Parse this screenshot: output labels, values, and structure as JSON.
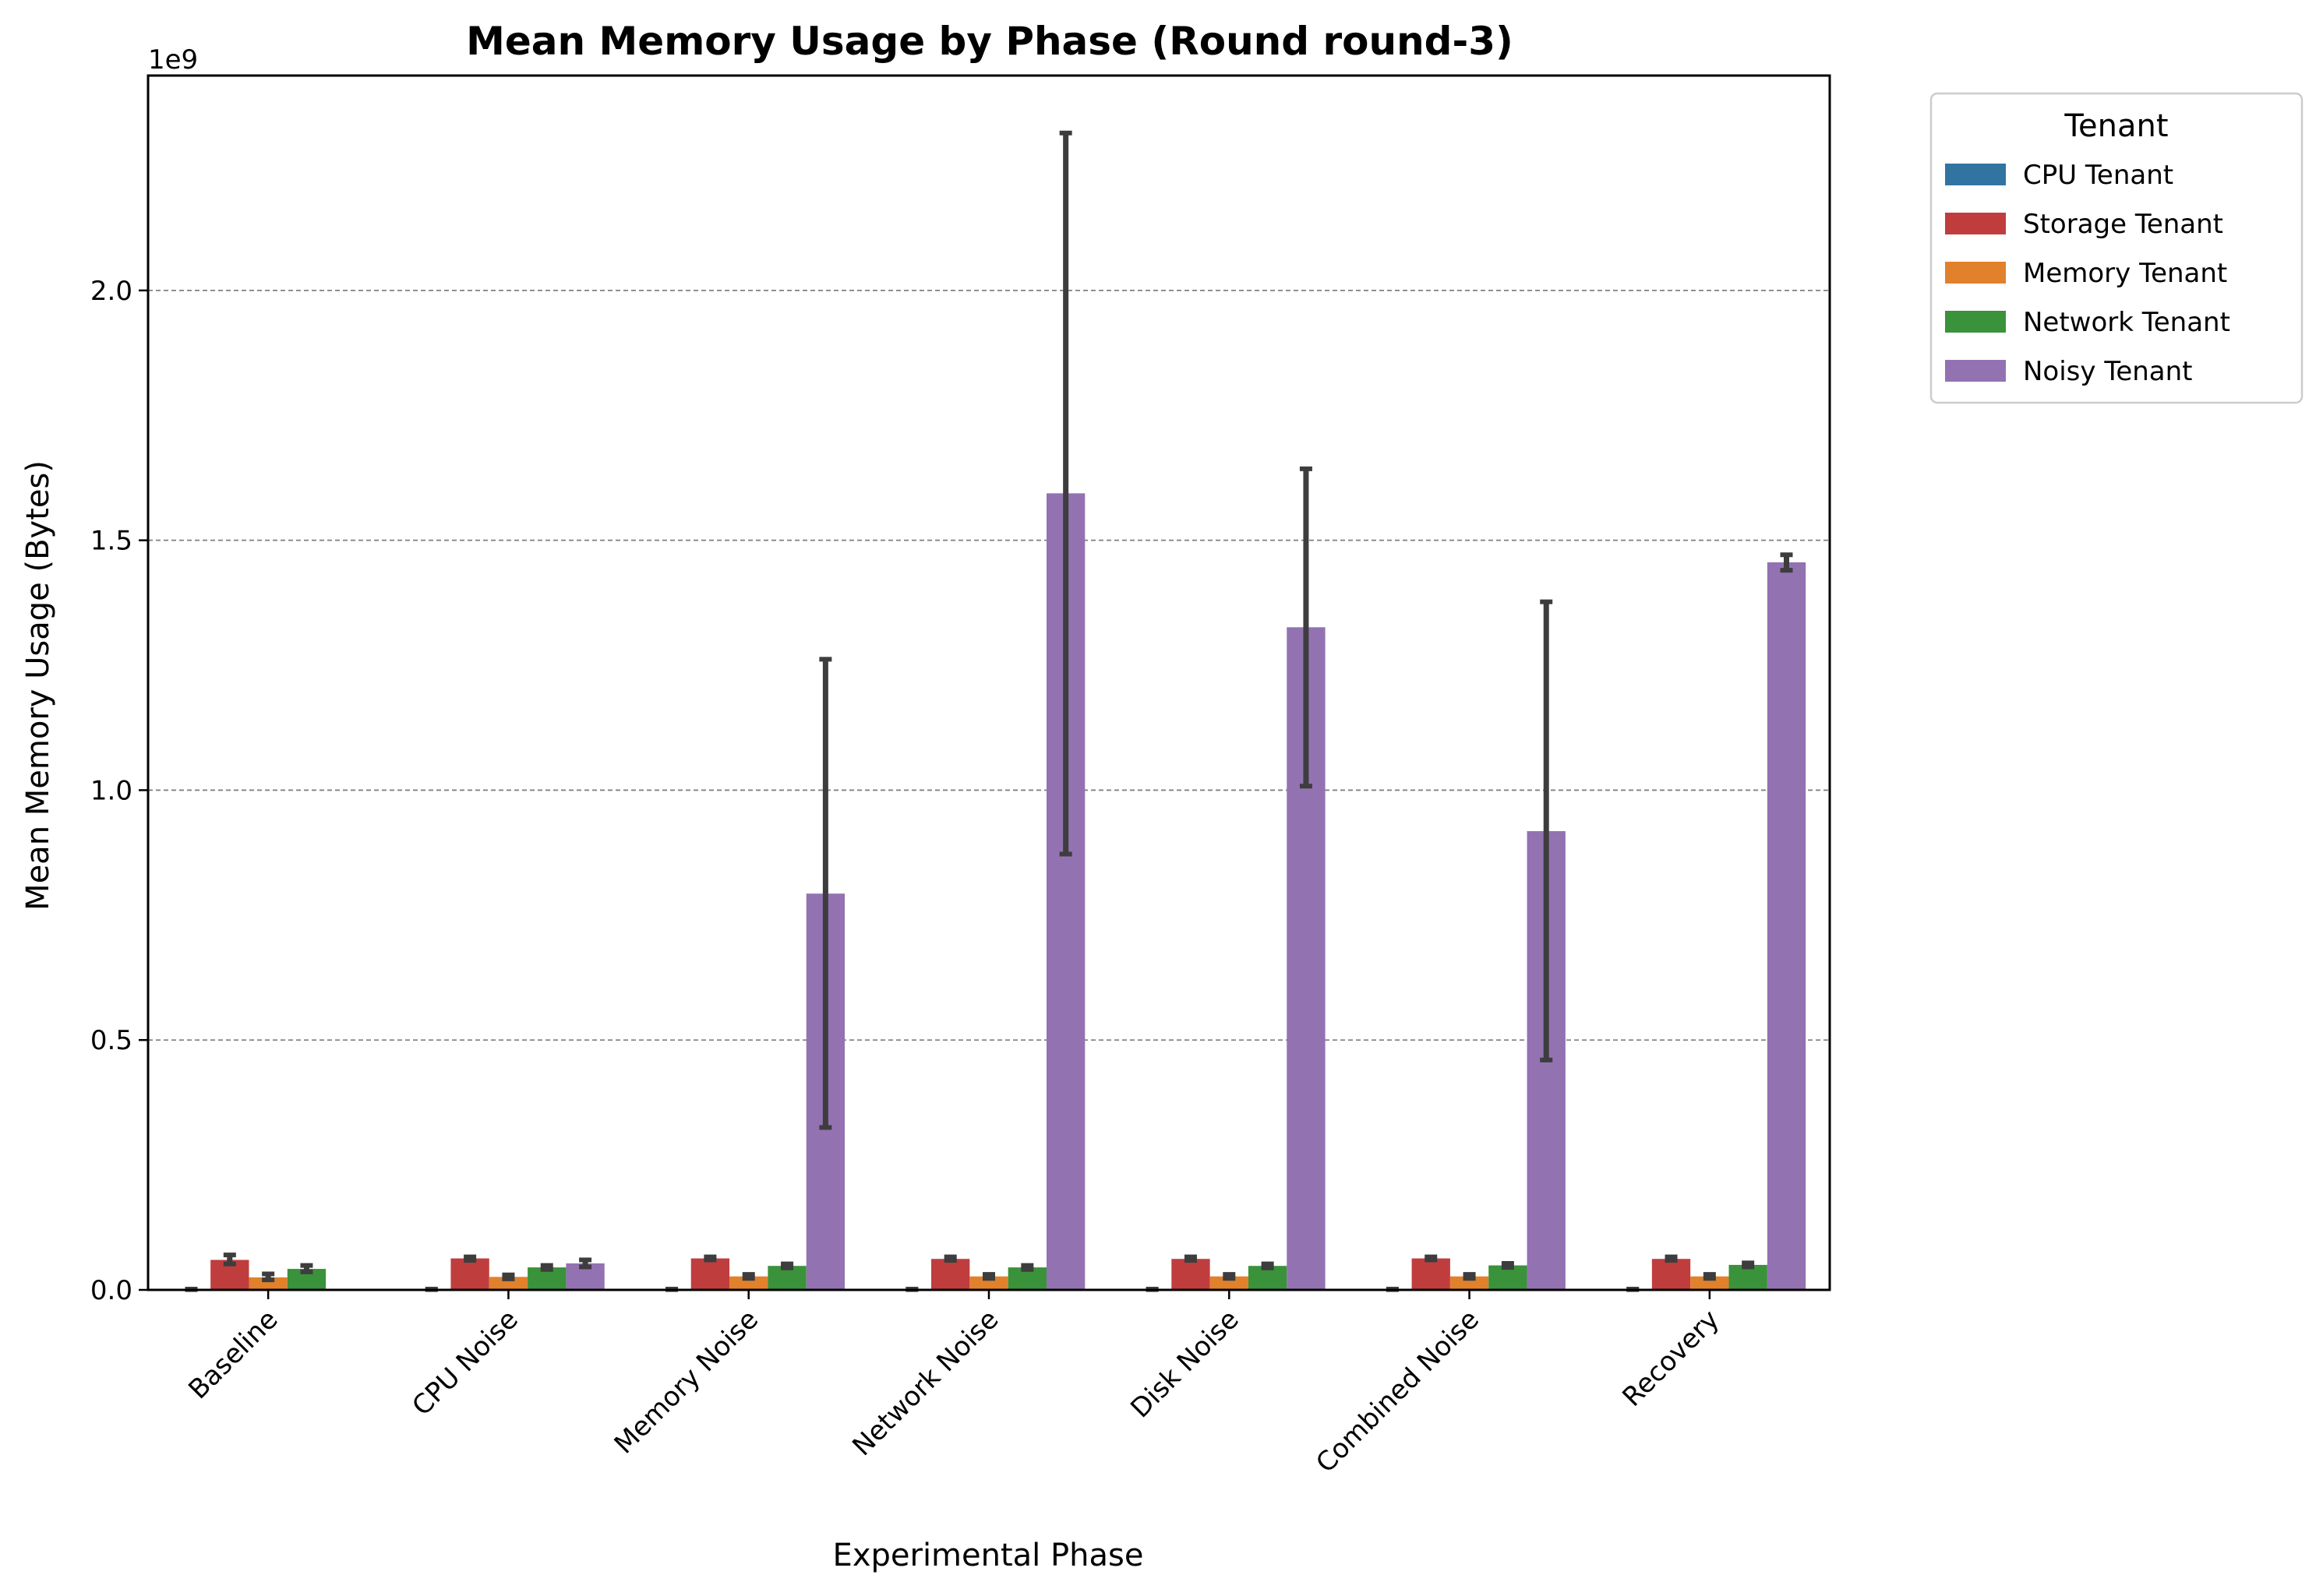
{
  "chart_data": {
    "type": "bar",
    "title": "Mean Memory Usage by Phase (Round round-3)",
    "xlabel": "Experimental Phase",
    "ylabel": "Mean Memory Usage (Bytes)",
    "y_offset_label": "1e9",
    "y_scale": 1000000000,
    "ylim": [
      0,
      2.43
    ],
    "yticks": [
      0.0,
      0.5,
      1.0,
      1.5,
      2.0
    ],
    "ytick_labels": [
      "0.0",
      "0.5",
      "1.0",
      "1.5",
      "2.0"
    ],
    "grid": "y-dashed",
    "legend_placement": "outside-top-right",
    "legend_title": "Tenant",
    "categories": [
      "Baseline",
      "CPU Noise",
      "Memory Noise",
      "Network Noise",
      "Disk Noise",
      "Combined Noise",
      "Recovery"
    ],
    "series": [
      {
        "name": "CPU Tenant",
        "color": "#3274a1",
        "values": [
          0.001,
          0.001,
          0.001,
          0.001,
          0.001,
          0.001,
          0.001
        ],
        "err_low": [
          0.0005,
          0.0005,
          0.0005,
          0.0005,
          0.0005,
          0.0005,
          0.0005
        ],
        "err_high": [
          0.0015,
          0.0015,
          0.0015,
          0.0015,
          0.0015,
          0.0015,
          0.0015
        ]
      },
      {
        "name": "Storage Tenant",
        "color": "#c03d3e",
        "values": [
          0.06,
          0.063,
          0.063,
          0.062,
          0.062,
          0.063,
          0.062
        ],
        "err_low": [
          0.052,
          0.059,
          0.06,
          0.059,
          0.059,
          0.06,
          0.059
        ],
        "err_high": [
          0.07,
          0.066,
          0.066,
          0.066,
          0.066,
          0.066,
          0.066
        ]
      },
      {
        "name": "Memory Tenant",
        "color": "#e1812c",
        "values": [
          0.025,
          0.026,
          0.027,
          0.027,
          0.027,
          0.027,
          0.027
        ],
        "err_low": [
          0.02,
          0.022,
          0.023,
          0.023,
          0.023,
          0.023,
          0.023
        ],
        "err_high": [
          0.032,
          0.03,
          0.031,
          0.031,
          0.031,
          0.031,
          0.031
        ]
      },
      {
        "name": "Network Tenant",
        "color": "#3a923a",
        "values": [
          0.042,
          0.045,
          0.048,
          0.045,
          0.048,
          0.049,
          0.05
        ],
        "err_low": [
          0.036,
          0.041,
          0.044,
          0.041,
          0.044,
          0.045,
          0.046
        ],
        "err_high": [
          0.049,
          0.049,
          0.052,
          0.049,
          0.052,
          0.053,
          0.054
        ]
      },
      {
        "name": "Noisy Tenant",
        "color": "#9372b2",
        "values": [
          null,
          0.053,
          0.793,
          1.594,
          1.326,
          0.918,
          1.456
        ],
        "err_low": [
          null,
          0.046,
          0.325,
          0.872,
          1.008,
          0.46,
          1.44
        ],
        "err_high": [
          null,
          0.06,
          1.262,
          2.315,
          1.643,
          1.377,
          1.471
        ]
      }
    ]
  }
}
